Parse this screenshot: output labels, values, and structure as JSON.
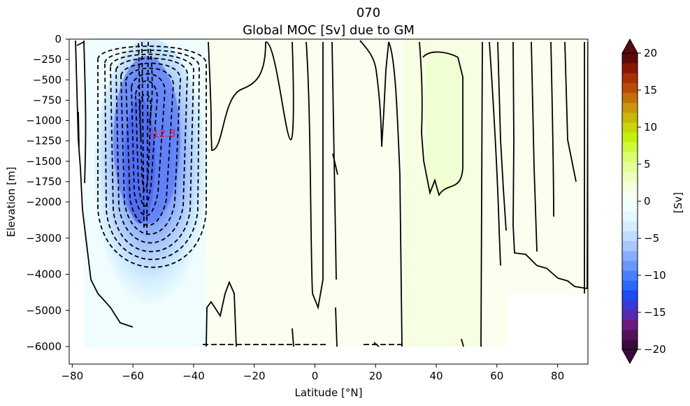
{
  "chart_data": {
    "type": "contour",
    "title_line1": "070",
    "title_line2": "Global MOC [Sv] due to GM",
    "xlabel": "Latitude [°N]",
    "ylabel": "Elevation [m]",
    "xlim": [
      -81,
      90
    ],
    "x_ticks": [
      -80,
      -60,
      -40,
      -20,
      0,
      20,
      40,
      60,
      80
    ],
    "x_tick_labels": [
      "−80",
      "−60",
      "−40",
      "−20",
      "0",
      "20",
      "40",
      "60",
      "80"
    ],
    "y_ticks_upper": [
      0,
      -250,
      -500,
      -750,
      -1000,
      -1250,
      -1500,
      -1750,
      -2000
    ],
    "y_ticks_upper_labels": [
      "0",
      "−250",
      "−500",
      "−750",
      "−1000",
      "−1250",
      "−1500",
      "−1750",
      "−2000"
    ],
    "y_ticks_lower": [
      -2000,
      -3000,
      -4000,
      -5000,
      -6000
    ],
    "y_ticks_lower_labels": [
      "−2000",
      "−3000",
      "−4000",
      "−5000",
      "−6000"
    ],
    "colorbar": {
      "label": "[Sv]",
      "range": [
        -20,
        20
      ],
      "ticks": [
        20,
        15,
        10,
        5,
        0,
        -5,
        -10,
        -15,
        -20
      ],
      "tick_labels": [
        "20",
        "15",
        "10",
        "5",
        "0",
        "−5",
        "−10",
        "−15",
        "−20"
      ],
      "colors": [
        "#3a0a3a",
        "#55105a",
        "#6a1a80",
        "#5a28b0",
        "#3a38d8",
        "#1a4cf0",
        "#2a66ff",
        "#4a7eff",
        "#6a96ff",
        "#8aaeff",
        "#a8c8ff",
        "#c0dcff",
        "#d4eeff",
        "#e4f8ff",
        "#f0ffff",
        "#f8fff4",
        "#f6ffe0",
        "#eeffc0",
        "#e4ff9a",
        "#d8ff70",
        "#ccfa3a",
        "#c6ee10",
        "#c8d60a",
        "#c8b80a",
        "#c89608",
        "#c47006",
        "#b84c04",
        "#a83004",
        "#8a1606",
        "#5a0a0a"
      ]
    },
    "annotation": {
      "text": "-12.8",
      "lat": -54,
      "depth": -1150,
      "color": "#e0143c"
    },
    "minimum": -12.8
  }
}
